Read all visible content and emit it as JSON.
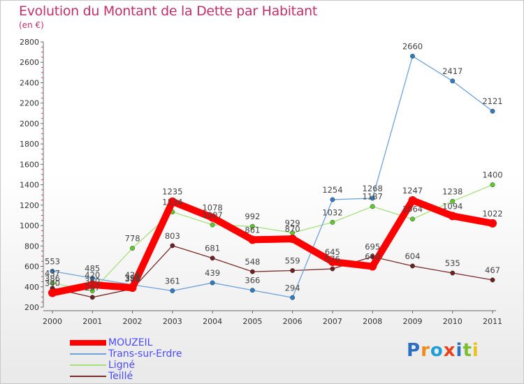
{
  "title": "Evolution du Montant de la Dette par Habitant",
  "subtitle": "(en €)",
  "logo_text": "Proxiti",
  "chart_data": {
    "type": "line",
    "title": "Evolution du Montant de la Dette par Habitant",
    "ylabel": "(en €)",
    "categories": [
      "2000",
      "2001",
      "2002",
      "2003",
      "2004",
      "2005",
      "2006",
      "2007",
      "2008",
      "2009",
      "2010",
      "2011"
    ],
    "ylim": [
      200,
      2800
    ],
    "yticks": [
      200,
      400,
      600,
      800,
      1000,
      1200,
      1400,
      1600,
      1800,
      2000,
      2200,
      2400,
      2600,
      2800
    ],
    "grid": false,
    "legend_position": "bottom-left",
    "series": [
      {
        "name": "MOUZEIL",
        "color": "#ff0000",
        "marker": "#ff0000",
        "values": [
          340,
          420,
          391,
          1235,
          1078,
          861,
          870,
          645,
          600,
          1247,
          1094,
          1022
        ]
      },
      {
        "name": "Trans-sur-Erdre",
        "color": "#6fa3d9",
        "marker": "#2e7cc4",
        "values": [
          553,
          485,
          420,
          361,
          439,
          366,
          294,
          1254,
          1268,
          2660,
          2417,
          2121
        ]
      },
      {
        "name": "Ligné",
        "color": "#a6e07f",
        "marker": "#5dcb2b",
        "values": [
          437,
          360,
          778,
          1134,
          1007,
          992,
          929,
          1032,
          1187,
          1064,
          1238,
          1400
        ]
      },
      {
        "name": "Teillé",
        "color": "#7a2a2a",
        "marker": "#6e1f1f",
        "values": [
          386,
          297,
          380,
          803,
          681,
          548,
          559,
          576,
          695,
          604,
          535,
          467
        ]
      }
    ]
  }
}
